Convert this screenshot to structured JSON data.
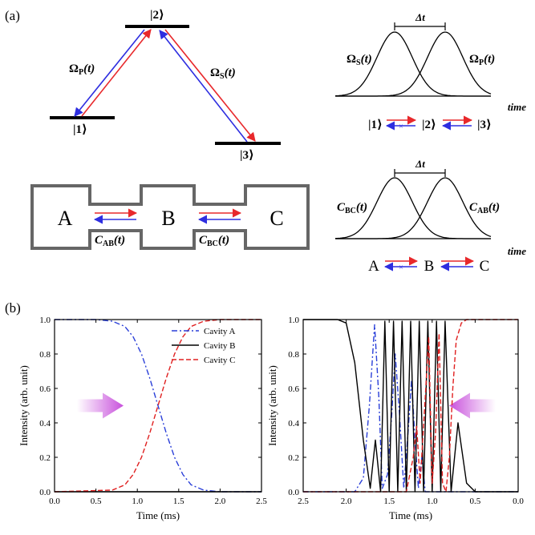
{
  "panel_labels": {
    "a": "(a)",
    "b": "(b)"
  },
  "level_diagram": {
    "levels": [
      "|1⟩",
      "|2⟩",
      "|3⟩"
    ],
    "pump": {
      "symbol": "Ω",
      "sub": "P",
      "arg": "(t)"
    },
    "stokes": {
      "symbol": "Ω",
      "sub": "S",
      "arg": "(t)"
    },
    "colors": {
      "red": "#e8282b",
      "blue": "#2e2ee0"
    }
  },
  "cavity_diagram": {
    "cavities": [
      "A",
      "B",
      "C"
    ],
    "coupling_ab": {
      "symbol": "C",
      "sub": "AB",
      "arg": "(t)"
    },
    "coupling_bc": {
      "symbol": "C",
      "sub": "BC",
      "arg": "(t)"
    }
  },
  "pulse_top": {
    "delay_label": "Δt",
    "left_pulse": {
      "symbol": "Ω",
      "sub": "S",
      "arg": "(t)"
    },
    "right_pulse": {
      "symbol": "Ω",
      "sub": "P",
      "arg": "(t)"
    },
    "axis_label": "time",
    "transfer": [
      "|1⟩",
      "|2⟩",
      "|3⟩"
    ],
    "mark": "×"
  },
  "pulse_bottom": {
    "delay_label": "Δt",
    "left_pulse": {
      "symbol": "C",
      "sub": "BC",
      "arg": "(t)"
    },
    "right_pulse": {
      "symbol": "C",
      "sub": "AB",
      "arg": "(t)"
    },
    "axis_label": "time",
    "transfer": [
      "A",
      "B",
      "C"
    ],
    "mark": "×"
  },
  "chart_data": [
    {
      "type": "line",
      "xlabel": "Time (ms)",
      "ylabel": "Intensity (arb. unit)",
      "xlim": [
        0.0,
        2.5
      ],
      "ylim": [
        0.0,
        1.0
      ],
      "xticks": [
        "0.0",
        "0.5",
        "1.0",
        "1.5",
        "2.0",
        "2.5"
      ],
      "yticks": [
        "0.0",
        "0.2",
        "0.4",
        "0.6",
        "0.8",
        "1.0"
      ],
      "legend_position": "top-right",
      "arrow": {
        "direction": "right",
        "color": "#d070e0"
      },
      "series": [
        {
          "name": "Cavity A",
          "color": "#2a3fd8",
          "dash": "dashdot",
          "x": [
            0.0,
            0.3,
            0.5,
            0.7,
            0.85,
            0.95,
            1.05,
            1.15,
            1.25,
            1.35,
            1.45,
            1.55,
            1.65,
            1.8,
            2.0,
            2.5
          ],
          "y": [
            1.0,
            1.0,
            1.0,
            0.99,
            0.96,
            0.9,
            0.8,
            0.66,
            0.5,
            0.34,
            0.2,
            0.1,
            0.04,
            0.01,
            0.0,
            0.0
          ]
        },
        {
          "name": "Cavity B",
          "color": "#000000",
          "dash": "solid",
          "x": [
            0.0,
            2.5
          ],
          "y": [
            0.0,
            0.0
          ]
        },
        {
          "name": "Cavity C",
          "color": "#e02020",
          "dash": "dashed",
          "x": [
            0.0,
            0.7,
            0.85,
            0.95,
            1.05,
            1.15,
            1.25,
            1.35,
            1.45,
            1.55,
            1.65,
            1.8,
            2.0,
            2.5
          ],
          "y": [
            0.0,
            0.01,
            0.04,
            0.1,
            0.2,
            0.34,
            0.5,
            0.66,
            0.8,
            0.9,
            0.96,
            0.99,
            1.0,
            1.0
          ]
        }
      ]
    },
    {
      "type": "line",
      "xlabel": "Time (ms)",
      "ylabel": "Intensity (arb. unit)",
      "xlim": [
        2.5,
        0.0
      ],
      "ylim": [
        0.0,
        1.0
      ],
      "xticks": [
        "2.5",
        "2.0",
        "1.5",
        "1.0",
        "0.5",
        "0.0"
      ],
      "yticks": [
        "0.0",
        "0.2",
        "0.4",
        "0.6",
        "0.8",
        "1.0"
      ],
      "arrow": {
        "direction": "left",
        "color": "#d070e0"
      },
      "series": [
        {
          "name": "Cavity A",
          "color": "#2a3fd8",
          "dash": "dashdot",
          "x": [
            2.5,
            1.9,
            1.8,
            1.73,
            1.67,
            1.62,
            1.58,
            1.52,
            1.47,
            1.43,
            1.38,
            1.33,
            1.28,
            1.24,
            1.2,
            1.16,
            1.12,
            1.08,
            0.9,
            0.0
          ],
          "y": [
            0.0,
            0.0,
            0.08,
            0.5,
            0.97,
            0.55,
            0.02,
            0.1,
            0.45,
            0.8,
            0.45,
            0.02,
            0.35,
            0.65,
            0.3,
            0.02,
            0.2,
            0.0,
            0.0,
            0.0
          ]
        },
        {
          "name": "Cavity B",
          "color": "#000000",
          "dash": "solid",
          "x": [
            2.5,
            2.1,
            2.0,
            1.9,
            1.8,
            1.72,
            1.66,
            1.6,
            1.55,
            1.5,
            1.45,
            1.4,
            1.35,
            1.3,
            1.25,
            1.2,
            1.15,
            1.1,
            1.05,
            1.0,
            0.95,
            0.9,
            0.85,
            0.78,
            0.7,
            0.6,
            0.5,
            0.3,
            0.0
          ],
          "y": [
            1.0,
            1.0,
            0.98,
            0.75,
            0.3,
            0.02,
            0.3,
            0.0,
            0.99,
            0.0,
            0.99,
            0.0,
            0.99,
            0.0,
            0.99,
            0.0,
            0.99,
            0.0,
            0.99,
            0.0,
            0.99,
            0.0,
            0.99,
            0.0,
            0.4,
            0.05,
            0.0,
            0.0,
            0.0
          ]
        },
        {
          "name": "Cavity C",
          "color": "#e02020",
          "dash": "dashed",
          "x": [
            2.5,
            1.3,
            1.22,
            1.18,
            1.14,
            1.08,
            1.04,
            1.0,
            0.96,
            0.92,
            0.88,
            0.84,
            0.8,
            0.76,
            0.72,
            0.66,
            0.6,
            0.5,
            0.0
          ],
          "y": [
            0.0,
            0.0,
            0.2,
            0.38,
            0.05,
            0.55,
            0.9,
            0.05,
            0.35,
            0.92,
            0.05,
            0.0,
            0.2,
            0.6,
            0.88,
            0.98,
            1.0,
            1.0,
            1.0
          ]
        }
      ]
    }
  ]
}
